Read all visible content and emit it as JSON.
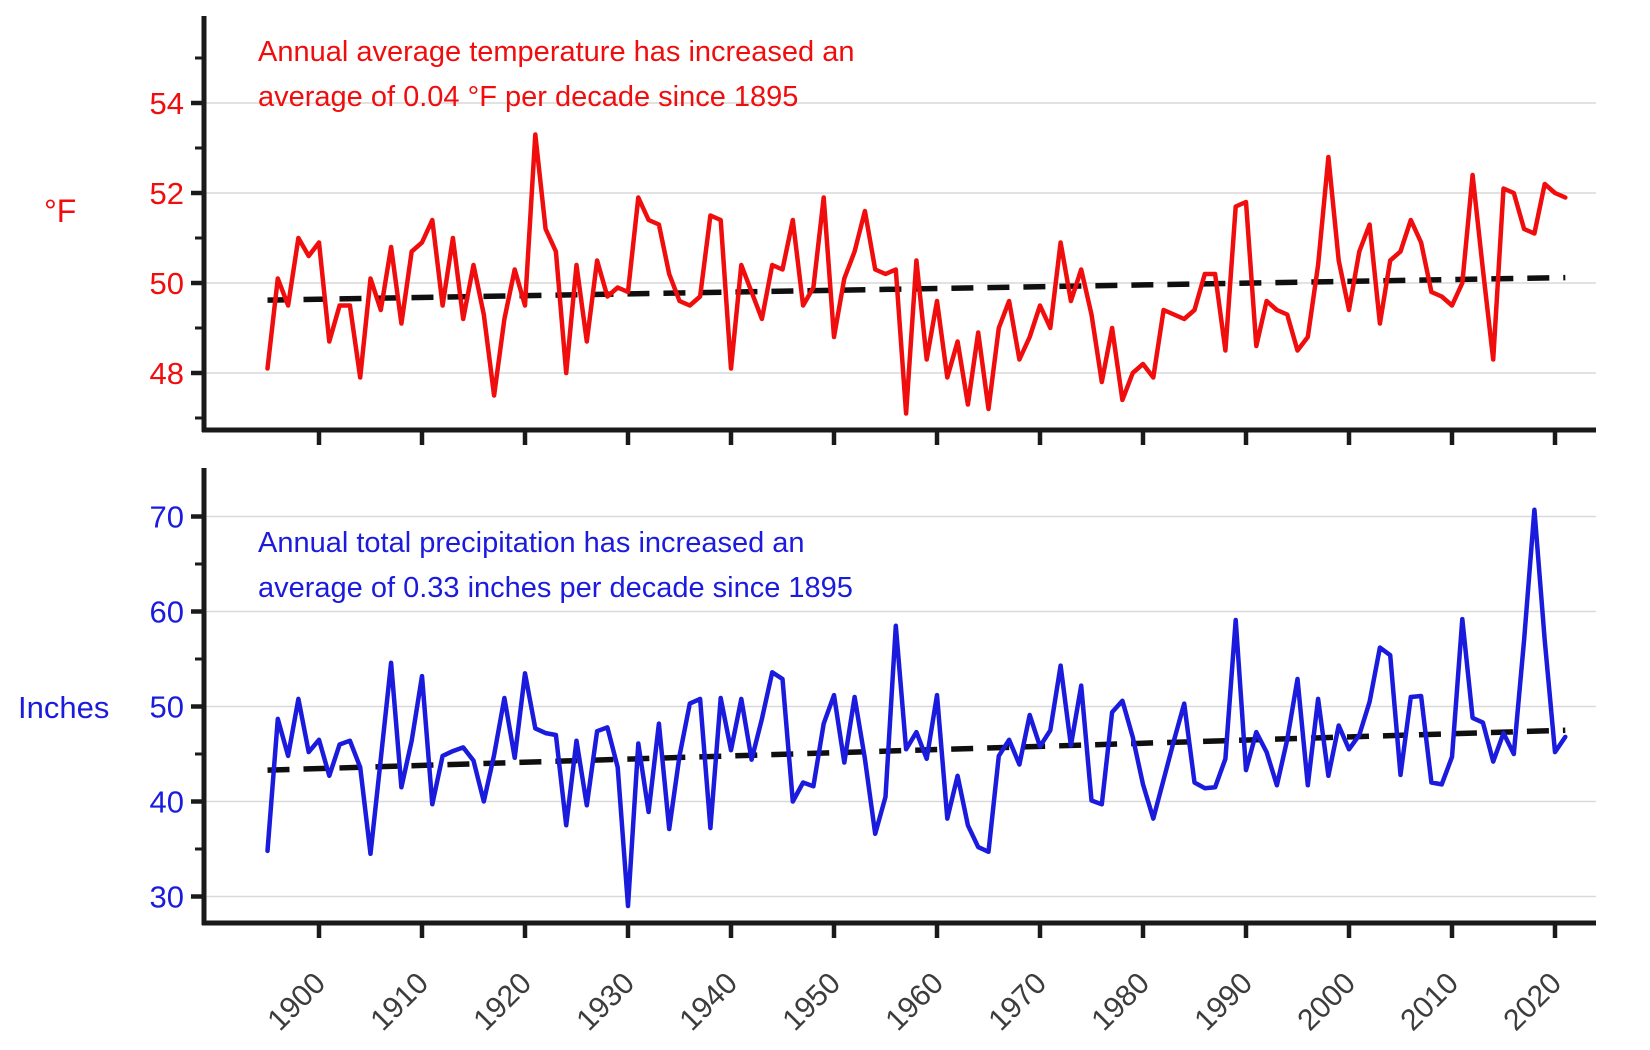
{
  "colors": {
    "temperature_series": "#f00d0d",
    "precipitation_series": "#1b1bde",
    "trend_line": "#0f0f0f",
    "gridline": "#d9d9d9",
    "axis_line": "#1a1a1a",
    "year_tick_label": "#3c3c3c"
  },
  "chart_data": [
    {
      "type": "line",
      "panel": "temperature",
      "ylabel": "°F",
      "annotation_line1": "Annual average temperature has increased an",
      "annotation_line2": "average of 0.04 °F per decade since 1895",
      "legend_position": "none",
      "grid": "horizontal-major-only",
      "series_color": "#f00d0d",
      "ylim": [
        46.7,
        55.9
      ],
      "yticks_major": [
        48,
        50,
        52,
        54
      ],
      "yticks_minor": [
        47,
        49,
        51,
        53,
        55
      ],
      "xticks": [
        1900,
        1910,
        1920,
        1930,
        1940,
        1950,
        1960,
        1970,
        1980,
        1990,
        2000,
        2010,
        2020
      ],
      "x_start_year": 1895,
      "x_end_year": 2021,
      "years": [
        1895,
        1896,
        1897,
        1898,
        1899,
        1900,
        1901,
        1902,
        1903,
        1904,
        1905,
        1906,
        1907,
        1908,
        1909,
        1910,
        1911,
        1912,
        1913,
        1914,
        1915,
        1916,
        1917,
        1918,
        1919,
        1920,
        1921,
        1922,
        1923,
        1924,
        1925,
        1926,
        1927,
        1928,
        1929,
        1930,
        1931,
        1932,
        1933,
        1934,
        1935,
        1936,
        1937,
        1938,
        1939,
        1940,
        1941,
        1942,
        1943,
        1944,
        1945,
        1946,
        1947,
        1948,
        1949,
        1950,
        1951,
        1952,
        1953,
        1954,
        1955,
        1956,
        1957,
        1958,
        1959,
        1960,
        1961,
        1962,
        1963,
        1964,
        1965,
        1966,
        1967,
        1968,
        1969,
        1970,
        1971,
        1972,
        1973,
        1974,
        1975,
        1976,
        1977,
        1978,
        1979,
        1980,
        1981,
        1982,
        1983,
        1984,
        1985,
        1986,
        1987,
        1988,
        1989,
        1990,
        1991,
        1992,
        1993,
        1994,
        1995,
        1996,
        1997,
        1998,
        1999,
        2000,
        2001,
        2002,
        2003,
        2004,
        2005,
        2006,
        2007,
        2008,
        2009,
        2010,
        2011,
        2012,
        2013,
        2014,
        2015,
        2016,
        2017,
        2018,
        2019,
        2020,
        2021
      ],
      "values": [
        48.1,
        50.1,
        49.5,
        51.0,
        50.6,
        50.9,
        48.7,
        49.5,
        49.5,
        47.9,
        50.1,
        49.4,
        50.8,
        49.1,
        50.7,
        50.9,
        51.4,
        49.5,
        51.0,
        49.2,
        50.4,
        49.3,
        47.5,
        49.2,
        50.3,
        49.5,
        53.3,
        51.2,
        50.7,
        48.0,
        50.4,
        48.7,
        50.5,
        49.7,
        49.9,
        49.8,
        51.9,
        51.4,
        51.3,
        50.2,
        49.6,
        49.5,
        49.7,
        51.5,
        51.4,
        48.1,
        50.4,
        49.8,
        49.2,
        50.4,
        50.3,
        51.4,
        49.5,
        49.9,
        51.9,
        48.8,
        50.1,
        50.7,
        51.6,
        50.3,
        50.2,
        50.3,
        47.1,
        50.5,
        48.3,
        49.6,
        47.9,
        48.7,
        47.3,
        48.9,
        47.2,
        49.0,
        49.6,
        48.3,
        48.8,
        49.5,
        49.0,
        50.9,
        49.6,
        50.3,
        49.3,
        47.8,
        49.0,
        47.4,
        48.0,
        48.2,
        47.9,
        49.4,
        49.3,
        49.2,
        49.4,
        50.2,
        50.2,
        48.5,
        51.7,
        51.8,
        48.6,
        49.6,
        49.4,
        49.3,
        48.5,
        48.8,
        50.4,
        52.8,
        50.5,
        49.4,
        50.7,
        51.3,
        49.1,
        50.5,
        50.7,
        51.4,
        50.9,
        49.8,
        49.7,
        49.5,
        50.0,
        52.4,
        50.3,
        48.3,
        52.1,
        52.0,
        51.2,
        51.1,
        52.2,
        52.0,
        51.9
      ],
      "trend": {
        "start_year": 1895,
        "start_value": 49.62,
        "end_year": 2021,
        "end_value": 50.12,
        "rate_per_decade_F": 0.04
      }
    },
    {
      "type": "line",
      "panel": "precipitation",
      "ylabel": "Inches",
      "annotation_line1": "Annual total precipitation has increased an",
      "annotation_line2": "average of 0.33 inches per decade since 1895",
      "legend_position": "none",
      "grid": "horizontal-major-only",
      "series_color": "#1b1bde",
      "ylim": [
        27.2,
        75.1
      ],
      "yticks_major": [
        30,
        40,
        50,
        60,
        70
      ],
      "yticks_minor": [
        35,
        45,
        55,
        65
      ],
      "xticks": [
        1900,
        1910,
        1920,
        1930,
        1940,
        1950,
        1960,
        1970,
        1980,
        1990,
        2000,
        2010,
        2020
      ],
      "x_start_year": 1895,
      "x_end_year": 2021,
      "years": [
        1895,
        1896,
        1897,
        1898,
        1899,
        1900,
        1901,
        1902,
        1903,
        1904,
        1905,
        1906,
        1907,
        1908,
        1909,
        1910,
        1911,
        1912,
        1913,
        1914,
        1915,
        1916,
        1917,
        1918,
        1919,
        1920,
        1921,
        1922,
        1923,
        1924,
        1925,
        1926,
        1927,
        1928,
        1929,
        1930,
        1931,
        1932,
        1933,
        1934,
        1935,
        1936,
        1937,
        1938,
        1939,
        1940,
        1941,
        1942,
        1943,
        1944,
        1945,
        1946,
        1947,
        1948,
        1949,
        1950,
        1951,
        1952,
        1953,
        1954,
        1955,
        1956,
        1957,
        1958,
        1959,
        1960,
        1961,
        1962,
        1963,
        1964,
        1965,
        1966,
        1967,
        1968,
        1969,
        1970,
        1971,
        1972,
        1973,
        1974,
        1975,
        1976,
        1977,
        1978,
        1979,
        1980,
        1981,
        1982,
        1983,
        1984,
        1985,
        1986,
        1987,
        1988,
        1989,
        1990,
        1991,
        1992,
        1993,
        1994,
        1995,
        1996,
        1997,
        1998,
        1999,
        2000,
        2001,
        2002,
        2003,
        2004,
        2005,
        2006,
        2007,
        2008,
        2009,
        2010,
        2011,
        2012,
        2013,
        2014,
        2015,
        2016,
        2017,
        2018,
        2019,
        2020,
        2021
      ],
      "values": [
        34.8,
        48.7,
        44.8,
        50.8,
        45.2,
        46.5,
        42.7,
        46.0,
        46.4,
        43.6,
        34.5,
        44.5,
        54.6,
        41.5,
        46.4,
        53.2,
        39.7,
        44.8,
        45.3,
        45.7,
        44.3,
        40.0,
        44.9,
        50.9,
        44.6,
        53.5,
        47.7,
        47.2,
        47.0,
        37.5,
        46.4,
        39.6,
        47.4,
        47.8,
        43.6,
        29.0,
        46.1,
        38.9,
        48.2,
        37.1,
        44.8,
        50.3,
        50.8,
        37.2,
        50.9,
        45.4,
        50.8,
        44.4,
        48.7,
        53.6,
        52.9,
        40.0,
        42.0,
        41.6,
        48.2,
        51.2,
        44.1,
        51.0,
        44.5,
        36.6,
        40.5,
        58.5,
        45.5,
        47.3,
        44.5,
        51.2,
        38.2,
        42.7,
        37.5,
        35.2,
        34.7,
        44.8,
        46.5,
        43.9,
        49.1,
        45.8,
        47.5,
        54.3,
        45.9,
        52.2,
        40.1,
        39.7,
        49.4,
        50.6,
        46.8,
        41.8,
        38.2,
        42.3,
        46.4,
        50.3,
        42.0,
        41.4,
        41.5,
        44.5,
        59.1,
        43.3,
        47.3,
        45.2,
        41.7,
        46.5,
        52.9,
        41.7,
        50.8,
        42.7,
        48.0,
        45.5,
        47.0,
        50.5,
        56.2,
        55.4,
        42.8,
        51.0,
        51.1,
        42.0,
        41.8,
        44.7,
        59.2,
        48.8,
        48.3,
        44.2,
        47.2,
        45.0,
        57.0,
        70.7,
        57.0,
        45.2,
        46.8
      ],
      "trend": {
        "start_year": 1895,
        "start_value": 43.3,
        "end_year": 2021,
        "end_value": 47.5,
        "rate_per_decade_inches": 0.33
      }
    }
  ]
}
